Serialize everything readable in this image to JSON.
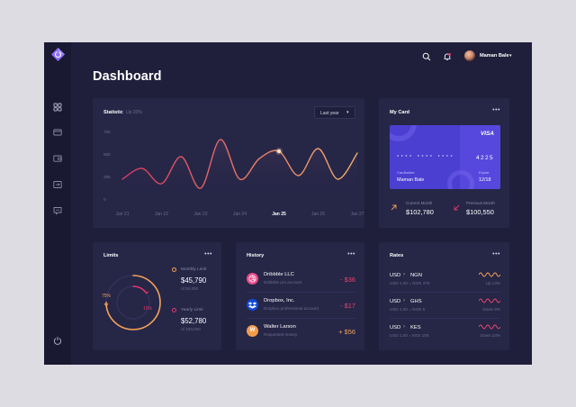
{
  "header": {
    "title": "Dashboard",
    "user_name": "Maman Bale"
  },
  "sidebar": {
    "items": [
      {
        "icon": "dashboard-icon"
      },
      {
        "icon": "card-icon"
      },
      {
        "icon": "wallet-icon"
      },
      {
        "icon": "transfer-icon"
      },
      {
        "icon": "message-icon"
      }
    ],
    "power_icon": "power-icon"
  },
  "statistic": {
    "title": "Statistic",
    "change": "Up 20%",
    "period": "Last year"
  },
  "chart_data": {
    "type": "line",
    "categories": [
      "Jan 21",
      "Jan 22",
      "Jan 23",
      "Jan 24",
      "Jan 25",
      "Jan 26",
      "Jan 27"
    ],
    "active_category": "Jan 25",
    "y_ticks": [
      "75k",
      "50k",
      "25k",
      "0"
    ],
    "ylim": [
      0,
      75000
    ],
    "series": [
      {
        "x": [
          0,
          0.5,
          1,
          1.5,
          2,
          2.5,
          3,
          3.5,
          4,
          4.5,
          5,
          5.5,
          6
        ],
        "values": [
          22000,
          34000,
          17000,
          47000,
          12000,
          66000,
          22000,
          45000,
          53000,
          26000,
          56000,
          22000,
          51000
        ]
      }
    ],
    "highlight_index": 8,
    "grid": false,
    "legend": "none",
    "line_gradient": [
      "#d83a62",
      "#f3b16b"
    ]
  },
  "my_card": {
    "title": "My Card",
    "network": "VISA",
    "number_masked": "* * * *   * * * *   * * * *",
    "number_last": "4225",
    "holder_label": "Cardholder",
    "holder_name": "Maman Bale",
    "expire_label": "Expire",
    "expire_value": "12/18",
    "current_month_label": "Current Month",
    "current_month_value": "$102,780",
    "previous_month_label": "Previous Month",
    "previous_month_value": "$100,550",
    "card_color": "#4a3fd1"
  },
  "limits": {
    "title": "Limits",
    "monthly_label": "Monthly Limit",
    "monthly_value": "$45,790",
    "monthly_of": "of 50,000",
    "yearly_label": "Yearly Limit",
    "yearly_value": "$52,780",
    "yearly_of": "of 100,000",
    "outer_percent_label": "75%",
    "inner_percent_label": "15%",
    "outer_percent": 0.75,
    "inner_percent": 0.15,
    "outer_color": "#f4a156",
    "inner_color": "#e5366c"
  },
  "history": {
    "title": "History",
    "items": [
      {
        "name": "Dribbble LLC",
        "desc": "Dribbble pro account",
        "amount": "- $36",
        "icon": "dribbble-icon"
      },
      {
        "name": "Dropbox, Inc.",
        "desc": "Dropbox professional account",
        "amount": "- $17",
        "icon": "dropbox-icon"
      },
      {
        "name": "Walter Larson",
        "desc": "Requested money",
        "amount": "+ $56",
        "icon": "user-w-icon",
        "initial": "W"
      }
    ],
    "negative_color": "#e8456c",
    "positive_color": "#f3a35a"
  },
  "rates": {
    "title": "Rates",
    "items": [
      {
        "from": "USD",
        "to": "NGN",
        "detail": "USD 1.00 = NGN 370",
        "change": "Up 13%",
        "color": "#f0a057"
      },
      {
        "from": "USD",
        "to": "GHS",
        "detail": "USD 1.00 = NGN 5",
        "change": "Down 9%",
        "color": "#e9456f"
      },
      {
        "from": "USD",
        "to": "KES",
        "detail": "USD 1.00 = KES 105",
        "change": "Down 23%",
        "color": "#e9456f"
      }
    ]
  }
}
